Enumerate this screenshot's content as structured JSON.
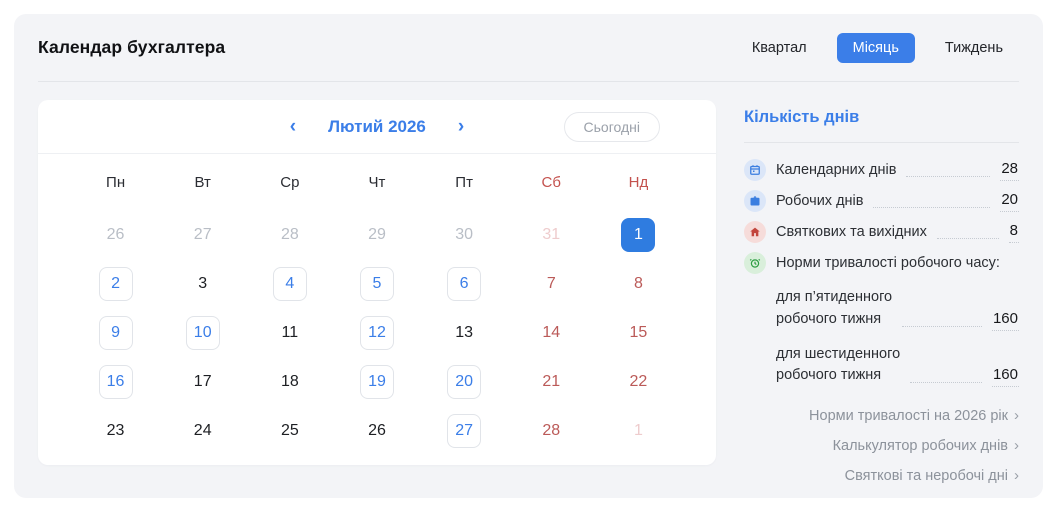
{
  "colors": {
    "accent": "#3b7ee8",
    "selected_day_bg": "#2f7ce0",
    "weekend_header": "#c4524e",
    "weekend_day": "#bb5a58",
    "panel_bg": "#f3f4f7"
  },
  "header": {
    "title": "Календар бухгалтера",
    "tabs": [
      {
        "label": "Квартал",
        "active": false
      },
      {
        "label": "Місяць",
        "active": true
      },
      {
        "label": "Тиждень",
        "active": false
      }
    ]
  },
  "calendar": {
    "nav": {
      "prev_icon": "‹",
      "month_label": "Лютий 2026",
      "next_icon": "›",
      "today_label": "Сьогодні"
    },
    "weekdays": [
      {
        "label": "Пн",
        "weekend": false
      },
      {
        "label": "Вт",
        "weekend": false
      },
      {
        "label": "Ср",
        "weekend": false
      },
      {
        "label": "Чт",
        "weekend": false
      },
      {
        "label": "Пт",
        "weekend": false
      },
      {
        "label": "Сб",
        "weekend": true
      },
      {
        "label": "Нд",
        "weekend": true
      }
    ],
    "weeks": [
      [
        {
          "day": "26",
          "type": "prev"
        },
        {
          "day": "27",
          "type": "prev"
        },
        {
          "day": "28",
          "type": "prev"
        },
        {
          "day": "29",
          "type": "prev"
        },
        {
          "day": "30",
          "type": "prev"
        },
        {
          "day": "31",
          "type": "prev-weekend"
        },
        {
          "day": "1",
          "type": "selected"
        }
      ],
      [
        {
          "day": "2",
          "type": "event"
        },
        {
          "day": "3",
          "type": "normal"
        },
        {
          "day": "4",
          "type": "event"
        },
        {
          "day": "5",
          "type": "event"
        },
        {
          "day": "6",
          "type": "event"
        },
        {
          "day": "7",
          "type": "weekend"
        },
        {
          "day": "8",
          "type": "weekend"
        }
      ],
      [
        {
          "day": "9",
          "type": "event"
        },
        {
          "day": "10",
          "type": "event"
        },
        {
          "day": "11",
          "type": "normal"
        },
        {
          "day": "12",
          "type": "event"
        },
        {
          "day": "13",
          "type": "normal"
        },
        {
          "day": "14",
          "type": "weekend"
        },
        {
          "day": "15",
          "type": "weekend"
        }
      ],
      [
        {
          "day": "16",
          "type": "event"
        },
        {
          "day": "17",
          "type": "normal"
        },
        {
          "day": "18",
          "type": "normal"
        },
        {
          "day": "19",
          "type": "event"
        },
        {
          "day": "20",
          "type": "event"
        },
        {
          "day": "21",
          "type": "weekend"
        },
        {
          "day": "22",
          "type": "weekend"
        }
      ],
      [
        {
          "day": "23",
          "type": "normal"
        },
        {
          "day": "24",
          "type": "normal"
        },
        {
          "day": "25",
          "type": "normal"
        },
        {
          "day": "26",
          "type": "normal"
        },
        {
          "day": "27",
          "type": "event"
        },
        {
          "day": "28",
          "type": "weekend"
        },
        {
          "day": "1",
          "type": "next-weekend"
        }
      ]
    ]
  },
  "sidebar": {
    "title": "Кількість днів",
    "stats": [
      {
        "icon": "calendar-icon",
        "color": "blue",
        "label": "Календарних днів",
        "value": "28"
      },
      {
        "icon": "briefcase-icon",
        "color": "blue",
        "label": "Робочих днів",
        "value": "20"
      },
      {
        "icon": "house-icon",
        "color": "red",
        "label": "Святкових та вихідних",
        "value": "8"
      },
      {
        "icon": "alarm-clock-icon",
        "color": "green",
        "label": "Норми тривалості робочого часу:",
        "value": null
      }
    ],
    "sub_stats": [
      {
        "label_lines": [
          "для п’ятиденного",
          "робочого тижня"
        ],
        "value": "160"
      },
      {
        "label_lines": [
          "для шестиденного",
          "робочого тижня"
        ],
        "value": "160"
      }
    ],
    "links": [
      {
        "label": "Норми тривалості на 2026 рік",
        "arrow": "›"
      },
      {
        "label": "Калькулятор робочих днів",
        "arrow": "›"
      },
      {
        "label": "Святкові та неробочі дні",
        "arrow": "›"
      }
    ]
  }
}
